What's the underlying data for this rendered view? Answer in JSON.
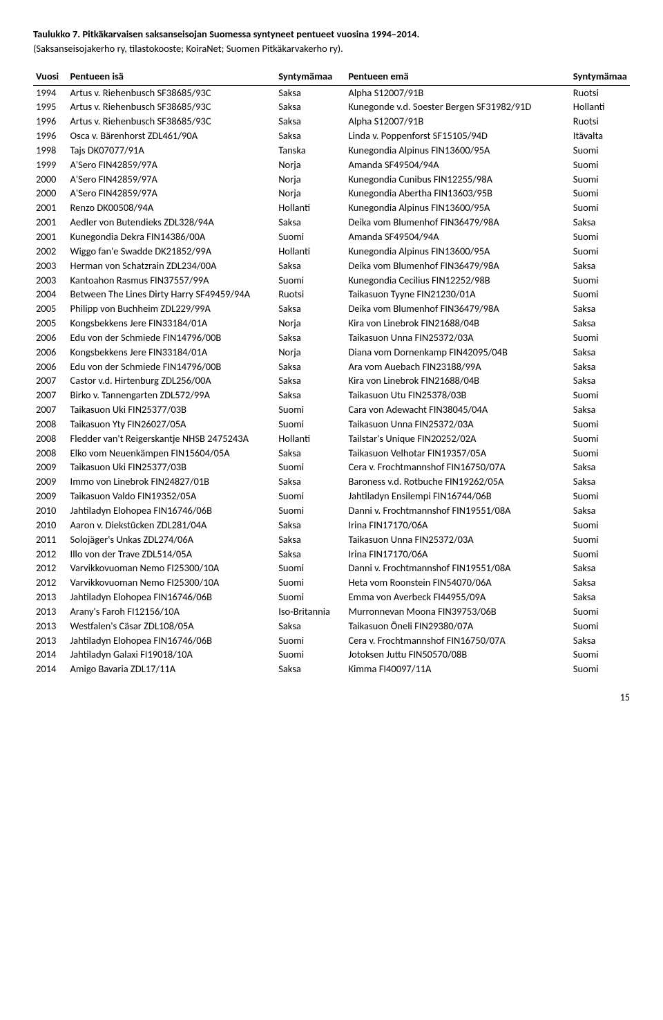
{
  "title": "Taulukko 7. Pitkäkarvaisen saksanseisojan Suomessa syntyneet pentueet vuosina 1994–2014.",
  "subtitle": "(Saksanseisojakerho ry, tilastokooste; KoiraNet; Suomen Pitkäkarvakerho ry).",
  "headers": {
    "year": "Vuosi",
    "sire": "Pentueen isä",
    "c1": "Syntymämaa",
    "dam": "Pentueen emä",
    "c2": "Syntymämaa"
  },
  "rows": [
    {
      "y": "1994",
      "s": "Artus v. Riehenbusch SF38685/93C",
      "c1": "Saksa",
      "d": "Alpha S12007/91B",
      "c2": "Ruotsi"
    },
    {
      "y": "1995",
      "s": "Artus v. Riehenbusch SF38685/93C",
      "c1": "Saksa",
      "d": "Kunegonde v.d. Soester Bergen SF31982/91D",
      "c2": "Hollanti"
    },
    {
      "y": "1996",
      "s": "Artus v. Riehenbusch SF38685/93C",
      "c1": "Saksa",
      "d": "Alpha S12007/91B",
      "c2": "Ruotsi"
    },
    {
      "y": "1996",
      "s": "Osca v. Bärenhorst ZDL461/90A",
      "c1": "Saksa",
      "d": "Linda v. Poppenforst  SF15105/94D",
      "c2": "Itävalta"
    },
    {
      "y": "1998",
      "s": "Tajs DK07077/91A",
      "c1": "Tanska",
      "d": "Kunegondia Alpinus FIN13600/95A",
      "c2": "Suomi"
    },
    {
      "y": "1999",
      "s": "A'Sero FIN42859/97A",
      "c1": "Norja",
      "d": "Amanda SF49504/94A",
      "c2": "Suomi"
    },
    {
      "y": "2000",
      "s": "A'Sero FIN42859/97A",
      "c1": "Norja",
      "d": "Kunegondia Cunibus FIN12255/98A",
      "c2": "Suomi"
    },
    {
      "y": "2000",
      "s": "A'Sero FIN42859/97A",
      "c1": "Norja",
      "d": "Kunegondia Abertha FIN13603/95B",
      "c2": "Suomi"
    },
    {
      "y": "2001",
      "s": "Renzo DK00508/94A",
      "c1": "Hollanti",
      "d": "Kunegondia Alpinus FIN13600/95A",
      "c2": "Suomi"
    },
    {
      "y": "2001",
      "s": "Aedler von Butendieks ZDL328/94A",
      "c1": "Saksa",
      "d": "Deika vom Blumenhof FIN36479/98A",
      "c2": "Saksa"
    },
    {
      "y": "2001",
      "s": "Kunegondia Dekra FIN14386/00A",
      "c1": "Suomi",
      "d": "Amanda SF49504/94A",
      "c2": "Suomi"
    },
    {
      "y": "2002",
      "s": "Wiggo fan'e Swadde DK21852/99A",
      "c1": "Hollanti",
      "d": "Kunegondia Alpinus FIN13600/95A",
      "c2": "Suomi"
    },
    {
      "y": "2003",
      "s": "Herman von Schatzrain ZDL234/00A",
      "c1": "Saksa",
      "d": "Deika vom Blumenhof FIN36479/98A",
      "c2": "Saksa"
    },
    {
      "y": "2003",
      "s": "Kantoahon Rasmus FIN37557/99A",
      "c1": "Suomi",
      "d": "Kunegondia Cecilius FIN12252/98B",
      "c2": "Suomi"
    },
    {
      "y": "2004",
      "s": "Between The Lines Dirty Harry SF49459/94A",
      "c1": "Ruotsi",
      "d": "Taikasuon Tyyne                           FIN21230/01A",
      "c2": "Suomi"
    },
    {
      "y": "2005",
      "s": "Philipp von Buchheim ZDL229/99A",
      "c1": "Saksa",
      "d": "Deika vom Blumenhof FIN36479/98A",
      "c2": "Saksa"
    },
    {
      "y": "2005",
      "s": "Kongsbekkens Jere FIN33184/01A",
      "c1": "Norja",
      "d": "Kira von Linebrok FIN21688/04B",
      "c2": "Saksa"
    },
    {
      "y": "2006",
      "s": "Edu von der Schmiede FIN14796/00B",
      "c1": "Saksa",
      "d": "Taikasuon Unna FIN25372/03A",
      "c2": "Suomi"
    },
    {
      "y": "2006",
      "s": "Kongsbekkens Jere FIN33184/01A",
      "c1": "Norja",
      "d": "Diana vom Dornenkamp FIN42095/04B",
      "c2": "Saksa"
    },
    {
      "y": "2006",
      "s": "Edu von der Schmiede FIN14796/00B",
      "c1": "Saksa",
      "d": "Ara vom Auebach FIN23188/99A",
      "c2": "Saksa"
    },
    {
      "y": "2007",
      "s": "Castor v.d. Hirtenburg ZDL256/00A",
      "c1": "Saksa",
      "d": "Kira von Linebrok FIN21688/04B",
      "c2": "Saksa"
    },
    {
      "y": "2007",
      "s": "Birko v. Tannengarten ZDL572/99A",
      "c1": "Saksa",
      "d": "Taikasuon Utu FIN25378/03B",
      "c2": "Suomi"
    },
    {
      "y": "2007",
      "s": "Taikasuon Uki FIN25377/03B",
      "c1": "Suomi",
      "d": "Cara von Adewacht FIN38045/04A",
      "c2": "Saksa"
    },
    {
      "y": "2008",
      "s": "Taikasuon Yty FIN26027/05A",
      "c1": "Suomi",
      "d": "Taikasuon Unna FIN25372/03A",
      "c2": "Suomi"
    },
    {
      "y": "2008",
      "s": "Fledder van't Reigerskantje NHSB 2475243A",
      "c1": "Hollanti",
      "d": "Tailstar's Unique FIN20252/02A",
      "c2": "Suomi"
    },
    {
      "y": "2008",
      "s": "Elko vom Neuenkämpen FIN15604/05A",
      "c1": "Saksa",
      "d": "Taikasuon Velhotar FIN19357/05A",
      "c2": "Suomi"
    },
    {
      "y": "2009",
      "s": "Taikasuon Uki FIN25377/03B",
      "c1": "Suomi",
      "d": "Cera v. Frochtmannshof FIN16750/07A",
      "c2": "Saksa"
    },
    {
      "y": "2009",
      "s": "Immo von Linebrok FIN24827/01B",
      "c1": "Saksa",
      "d": "Baroness v.d. Rotbuche FIN19262/05A",
      "c2": "Saksa"
    },
    {
      "y": "2009",
      "s": "Taikasuon Valdo FIN19352/05A",
      "c1": "Suomi",
      "d": "Jahtiladyn Ensilempi FIN16744/06B",
      "c2": "Suomi"
    },
    {
      "y": "2010",
      "s": "Jahtiladyn Elohopea FIN16746/06B",
      "c1": "Suomi",
      "d": "Danni v. Frochtmannshof FIN19551/08A",
      "c2": "Saksa"
    },
    {
      "y": "2010",
      "s": "Aaron v. Diekstücken ZDL281/04A",
      "c1": "Saksa",
      "d": "Irina FIN17170/06A",
      "c2": "Suomi"
    },
    {
      "y": "2011",
      "s": "Solojäger's Unkas ZDL274/06A",
      "c1": "Saksa",
      "d": "Taikasuon Unna FIN25372/03A",
      "c2": "Suomi"
    },
    {
      "y": "2012",
      "s": "Illo von der Trave ZDL514/05A",
      "c1": "Saksa",
      "d": "Irina FIN17170/06A",
      "c2": "Suomi"
    },
    {
      "y": "2012",
      "s": "Varvikkovuoman Nemo FI25300/10A",
      "c1": "Suomi",
      "d": "Danni v. Frochtmannshof FIN19551/08A",
      "c2": "Saksa"
    },
    {
      "y": "2012",
      "s": "Varvikkovuoman Nemo FI25300/10A",
      "c1": "Suomi",
      "d": "Heta vom Roonstein FIN54070/06A",
      "c2": "Saksa"
    },
    {
      "y": "2013",
      "s": "Jahtiladyn Elohopea FIN16746/06B",
      "c1": "Suomi",
      "d": "Emma von Averbeck FI44955/09A",
      "c2": "Saksa"
    },
    {
      "y": "2013",
      "s": "Arany's Faroh FI12156/10A",
      "c1": "Iso-Britannia",
      "d": "Murronnevan Moona FIN39753/06B",
      "c2": "Suomi"
    },
    {
      "y": "2013",
      "s": "Westfalen's Cäsar ZDL108/05A",
      "c1": "Saksa",
      "d": "Taikasuon Öneli FIN29380/07A",
      "c2": "Suomi"
    },
    {
      "y": "2013",
      "s": "Jahtiladyn Elohopea FIN16746/06B",
      "c1": "Suomi",
      "d": "Cera v. Frochtmannshof FIN16750/07A",
      "c2": "Saksa"
    },
    {
      "y": "2014",
      "s": "Jahtiladyn Galaxi FI19018/10A",
      "c1": "Suomi",
      "d": "Jotoksen Juttu FIN50570/08B",
      "c2": "Suomi"
    },
    {
      "y": "2014",
      "s": "Amigo Bavaria ZDL17/11A",
      "c1": "Saksa",
      "d": "Kimma FI40097/11A",
      "c2": "Suomi"
    }
  ],
  "page": "15"
}
